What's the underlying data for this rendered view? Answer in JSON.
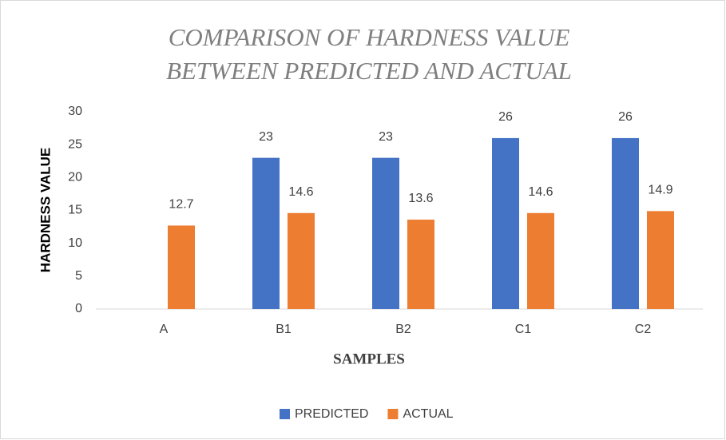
{
  "chart_data": {
    "type": "bar",
    "title": [
      "COMPARISON OF HARDNESS VALUE",
      "BETWEEN PREDICTED AND ACTUAL"
    ],
    "x_label": "SAMPLES",
    "y_label": "HARDNESS VALUE",
    "categories": [
      "A",
      "B1",
      "B2",
      "C1",
      "C2"
    ],
    "series": [
      {
        "name": "PREDICTED",
        "color": "#4472c4",
        "values": [
          null,
          23,
          23,
          26,
          26
        ]
      },
      {
        "name": "ACTUAL",
        "color": "#ed7d31",
        "values": [
          12.7,
          14.6,
          13.6,
          14.6,
          14.9
        ]
      }
    ],
    "ylim": [
      0,
      30
    ],
    "yticks": [
      0,
      5,
      10,
      15,
      20,
      25,
      30
    ],
    "grid": false,
    "legend": "bottom"
  }
}
